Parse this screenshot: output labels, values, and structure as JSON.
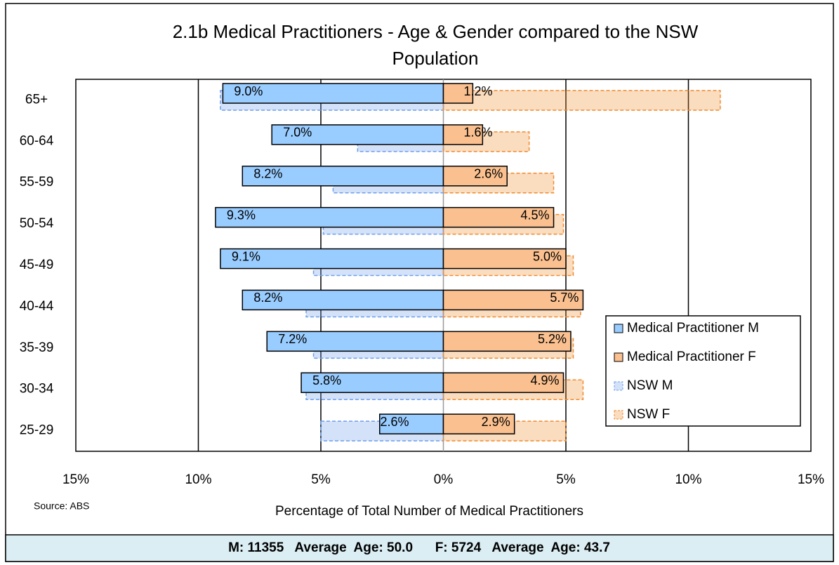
{
  "chart_data": {
    "type": "pyramid",
    "title": "2.1b Medical Practitioners - Age & Gender compared to the NSW",
    "title_line2": "Population",
    "categories": [
      "65+",
      "60-64",
      "55-59",
      "50-54",
      "45-49",
      "40-44",
      "35-39",
      "30-34",
      "25-29"
    ],
    "series": [
      {
        "name": "Medical Practitioner M",
        "color": "#99ccff",
        "dashed": false,
        "values": [
          -9.0,
          -7.0,
          -8.2,
          -9.3,
          -9.1,
          -8.2,
          -7.2,
          -5.8,
          -2.6
        ],
        "value_labels": [
          "9.0%",
          "7.0%",
          "8.2%",
          "9.3%",
          "9.1%",
          "8.2%",
          "7.2%",
          "5.8%",
          "2.6%"
        ]
      },
      {
        "name": "Medical Practitioner F",
        "color": "#fac08f",
        "dashed": false,
        "values": [
          1.2,
          1.6,
          2.6,
          4.5,
          5.0,
          5.7,
          5.2,
          4.9,
          2.9
        ],
        "value_labels": [
          "1.2%",
          "1.6%",
          "2.6%",
          "4.5%",
          "5.0%",
          "5.7%",
          "5.2%",
          "4.9%",
          "2.9%"
        ]
      },
      {
        "name": "NSW M",
        "color": "#6d9eeb",
        "dashed": true,
        "values": [
          -9.1,
          -3.5,
          -4.5,
          -4.9,
          -5.3,
          -5.6,
          -5.3,
          -5.6,
          -5.0
        ]
      },
      {
        "name": "NSW F",
        "color": "#f08a2c",
        "dashed": true,
        "values": [
          11.3,
          3.5,
          4.5,
          4.9,
          5.3,
          5.6,
          5.3,
          5.7,
          5.0
        ]
      }
    ],
    "xlim": [
      -15,
      15
    ],
    "xticks": [
      {
        "value": -15,
        "label": "15%"
      },
      {
        "value": -10,
        "label": "10%"
      },
      {
        "value": -5,
        "label": "5%"
      },
      {
        "value": 0,
        "label": "0%"
      },
      {
        "value": 5,
        "label": "5%"
      },
      {
        "value": 10,
        "label": "10%"
      },
      {
        "value": 15,
        "label": "15%"
      }
    ],
    "grid": true,
    "legend": "lower right",
    "xlabel": "Percentage of Total Number of Medical Practitioners",
    "source": "Source: ABS",
    "footer": "M: 11355   Average  Age: 50.0      F: 5724   Average  Age: 43.7"
  }
}
